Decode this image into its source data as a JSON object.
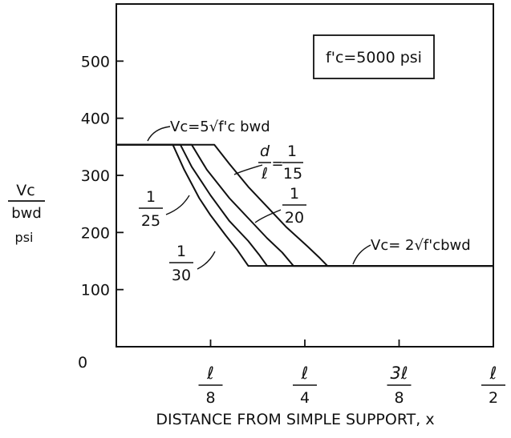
{
  "chart_data": {
    "type": "line",
    "xlabel": "DISTANCE FROM SIMPLE SUPPORT, x",
    "ylabel": {
      "num": "Vc",
      "den": "bwd",
      "unit": "psi"
    },
    "x_unit": "fraction of span ℓ",
    "xlim": [
      0,
      0.5
    ],
    "ylim": [
      0,
      600
    ],
    "x_ticks": [
      {
        "value": 0,
        "num": "0",
        "den": ""
      },
      {
        "value": 0.125,
        "num": "ℓ",
        "den": "8"
      },
      {
        "value": 0.25,
        "num": "ℓ",
        "den": "4"
      },
      {
        "value": 0.375,
        "num": "3ℓ",
        "den": "8"
      },
      {
        "value": 0.5,
        "num": "ℓ",
        "den": "2"
      }
    ],
    "y_ticks": [
      100,
      200,
      300,
      400,
      500
    ],
    "grid": false,
    "legend_box": {
      "text": "f'c=5000 psi",
      "position": "top-right"
    },
    "upper_limit": {
      "value": 353.55,
      "label": "Vc=5√f'c bwd"
    },
    "lower_limit": {
      "value": 141.42,
      "label": "Vc= 2√f'cbwd"
    },
    "series": [
      {
        "name": "d/ℓ = 1/15",
        "label_num": "1",
        "label_den": "15",
        "x": [
          0,
          0.13,
          0.15,
          0.175,
          0.2,
          0.225,
          0.25,
          0.27,
          0.28,
          0.5
        ],
        "y": [
          353.55,
          353.55,
          320,
          280,
          245,
          210,
          180,
          155,
          141.42,
          141.42
        ]
      },
      {
        "name": "1/20",
        "label_num": "1",
        "label_den": "20",
        "x": [
          0,
          0.1,
          0.12,
          0.15,
          0.175,
          0.2,
          0.22,
          0.235,
          0.5
        ],
        "y": [
          353.55,
          353.55,
          310,
          260,
          225,
          190,
          165,
          141.42,
          141.42
        ]
      },
      {
        "name": "1/25",
        "label_num": "1",
        "label_den": "25",
        "x": [
          0,
          0.085,
          0.1,
          0.125,
          0.15,
          0.175,
          0.19,
          0.2,
          0.5
        ],
        "y": [
          353.55,
          353.55,
          315,
          265,
          220,
          185,
          160,
          141.42,
          141.42
        ]
      },
      {
        "name": "1/30",
        "label_num": "1",
        "label_den": "30",
        "x": [
          0,
          0.075,
          0.09,
          0.11,
          0.125,
          0.145,
          0.16,
          0.175,
          0.5
        ],
        "y": [
          353.55,
          353.55,
          310,
          260,
          230,
          195,
          170,
          141.42,
          141.42
        ]
      }
    ]
  }
}
